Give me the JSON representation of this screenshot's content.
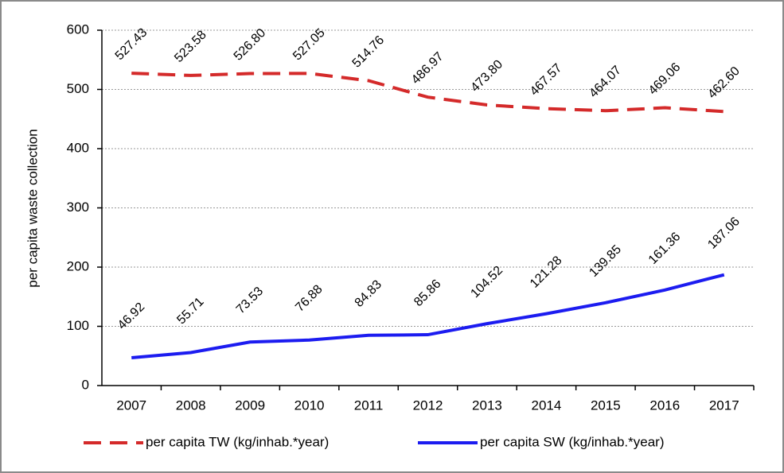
{
  "chart_data": {
    "type": "line",
    "ylabel": "per capita waste collection",
    "categories": [
      "2007",
      "2008",
      "2009",
      "2010",
      "2011",
      "2012",
      "2013",
      "2014",
      "2015",
      "2016",
      "2017"
    ],
    "series": [
      {
        "name": "per capita TW (kg/inhab.*year)",
        "color": "#d42a2a",
        "style": "dashed",
        "values": [
          527.43,
          523.58,
          526.8,
          527.05,
          514.76,
          486.97,
          473.8,
          467.57,
          464.07,
          469.06,
          462.6
        ],
        "value_labels": [
          "527.43",
          "523.58",
          "526.80",
          "527.05",
          "514.76",
          "486.97",
          "473.80",
          "467.57",
          "464.07",
          "469.06",
          "462.60"
        ]
      },
      {
        "name": "per capita SW (kg/inhab.*year)",
        "color": "#1c1cf0",
        "style": "solid",
        "values": [
          46.92,
          55.71,
          73.53,
          76.88,
          84.83,
          85.86,
          104.52,
          121.28,
          139.85,
          161.36,
          187.06
        ],
        "value_labels": [
          "46.92",
          "55.71",
          "73.53",
          "76.88",
          "84.83",
          "85.86",
          "104.52",
          "121.28",
          "139.85",
          "161.36",
          "187.06"
        ]
      }
    ],
    "ylim": [
      0,
      600
    ],
    "yticks": [
      0,
      100,
      200,
      300,
      400,
      500,
      600
    ],
    "grid": true,
    "legend": "bottom"
  }
}
